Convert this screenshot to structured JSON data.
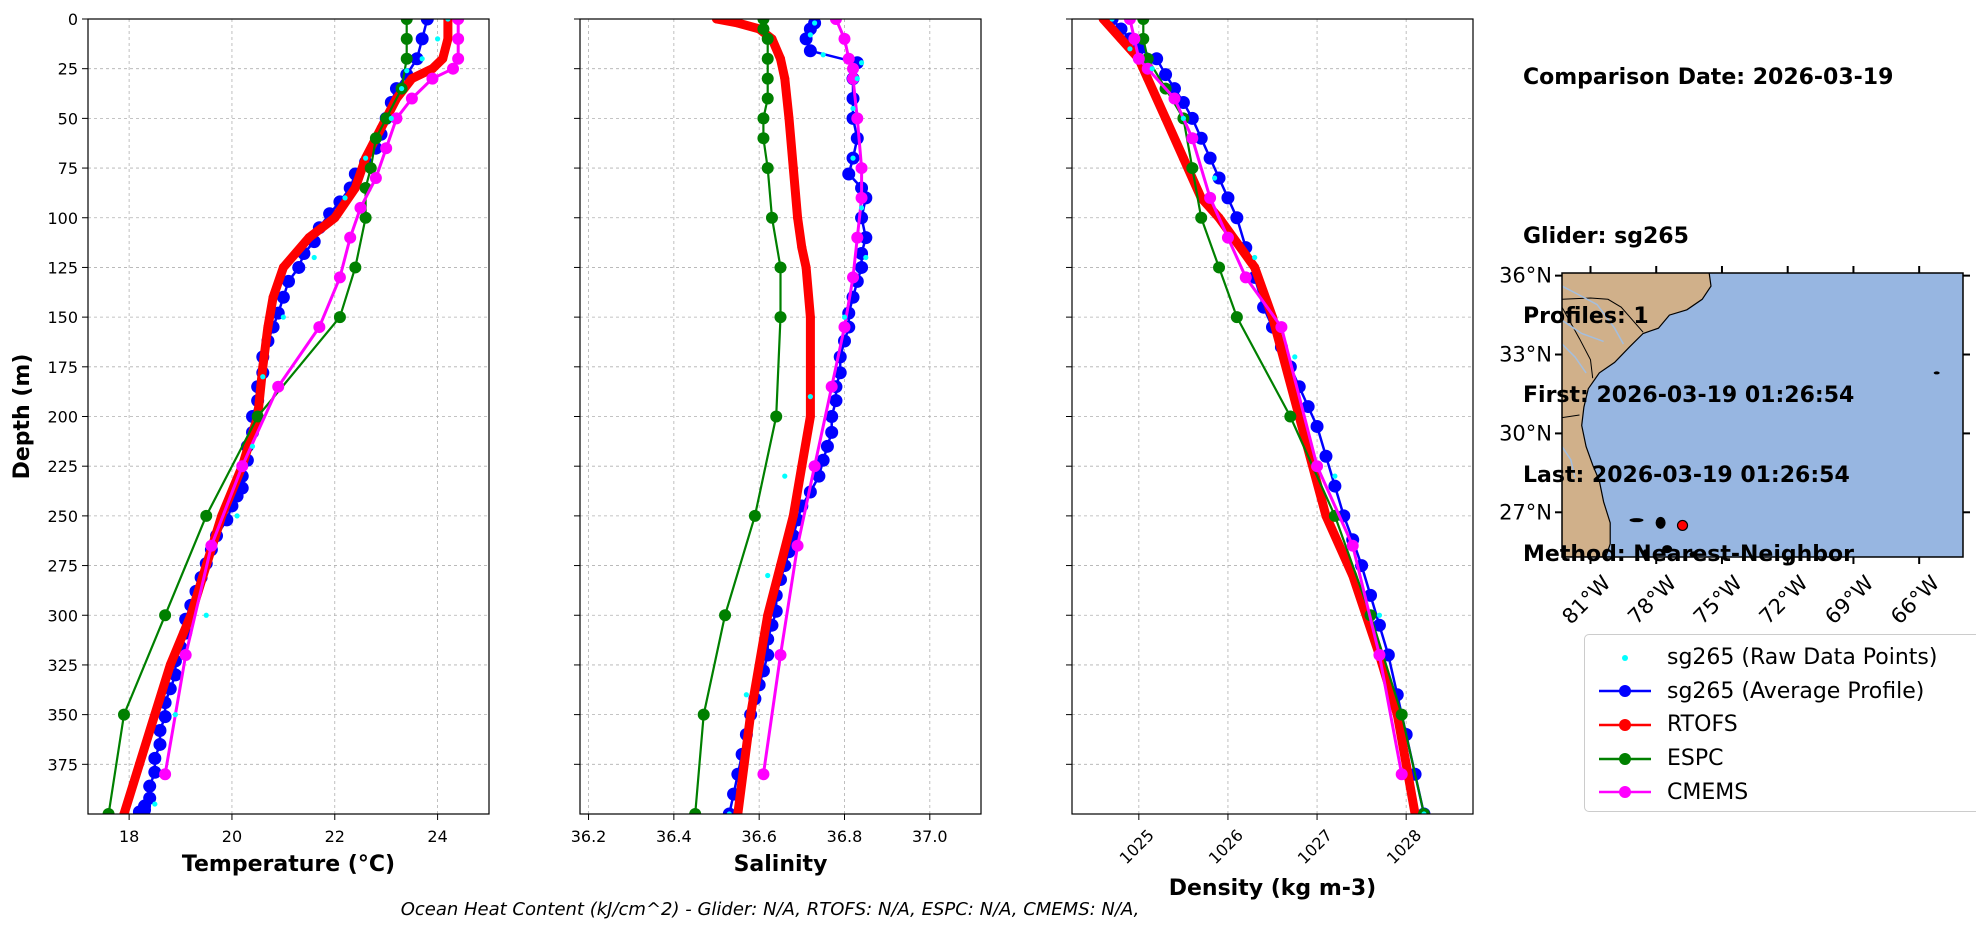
{
  "info": {
    "comparison_date": "Comparison Date: 2026-03-19",
    "glider": "Glider: sg265",
    "profiles": "Profiles: 1",
    "first": "First: 2026-03-19 01:26:54",
    "last": "Last: 2026-03-19 01:26:54",
    "method": "Method: Nearest-Neighbor"
  },
  "footer": "Ocean Heat Content (kJ/cm^2) - Glider: N/A,  RTOFS: N/A,  ESPC: N/A,  CMEMS: N/A,",
  "colors": {
    "raw": "#00ffff",
    "glider": "#0000ff",
    "rtofs": "#ff0000",
    "espc": "#008000",
    "cmems": "#ff00ff",
    "ocean": "#97b6e1",
    "land": "#d0b08a",
    "marker": "#ff0000"
  },
  "legend": [
    {
      "key": "raw",
      "label": "sg265 (Raw Data Points)"
    },
    {
      "key": "glider",
      "label": "sg265 (Average Profile)"
    },
    {
      "key": "rtofs",
      "label": "RTOFS"
    },
    {
      "key": "espc",
      "label": "ESPC"
    },
    {
      "key": "cmems",
      "label": "CMEMS"
    }
  ],
  "chart_data": [
    {
      "type": "line",
      "ylabel": "Depth (m)",
      "xlabel": "Temperature (°C)",
      "xlim": [
        17.2,
        25.0
      ],
      "ylim": [
        400,
        0
      ],
      "xticks": [
        18,
        20,
        22,
        24
      ],
      "xtick_labels": [
        "18",
        "20",
        "22",
        "24"
      ],
      "yticks": [
        0,
        25,
        50,
        75,
        100,
        125,
        150,
        175,
        200,
        225,
        250,
        275,
        300,
        325,
        350,
        375
      ],
      "grid": true,
      "series": [
        {
          "name": "sg265 (Raw Data Points)",
          "key": "raw",
          "x": [
            24.2,
            24.0,
            23.7,
            23.4,
            23.3,
            23.1,
            22.6,
            22.2,
            21.6,
            21.0,
            20.6,
            20.4,
            20.1,
            19.5,
            18.9,
            18.5
          ],
          "y": [
            0,
            10,
            20,
            26,
            35,
            50,
            70,
            90,
            120,
            150,
            180,
            215,
            250,
            300,
            350,
            395
          ]
        },
        {
          "name": "sg265 (Average Profile)",
          "key": "glider",
          "x": [
            23.8,
            23.7,
            23.6,
            23.4,
            23.2,
            23.1,
            23.0,
            22.9,
            22.8,
            22.6,
            22.4,
            22.3,
            22.1,
            21.9,
            21.7,
            21.6,
            21.4,
            21.3,
            21.1,
            21.0,
            20.9,
            20.8,
            20.7,
            20.6,
            20.6,
            20.5,
            20.5,
            20.4,
            20.4,
            20.3,
            20.3,
            20.2,
            20.2,
            20.1,
            20.0,
            19.9,
            19.7,
            19.6,
            19.5,
            19.4,
            19.3,
            19.2,
            19.1,
            19.1,
            19.0,
            18.9,
            18.9,
            18.8,
            18.7,
            18.7,
            18.6,
            18.6,
            18.5,
            18.5,
            18.4,
            18.4,
            18.3,
            18.3,
            18.2,
            18.2
          ],
          "y": [
            0,
            10,
            20,
            28,
            35,
            42,
            50,
            58,
            65,
            72,
            78,
            85,
            92,
            98,
            105,
            112,
            118,
            125,
            132,
            140,
            148,
            155,
            162,
            170,
            178,
            185,
            192,
            200,
            208,
            215,
            222,
            230,
            236,
            240,
            245,
            252,
            260,
            267,
            274,
            281,
            288,
            295,
            302,
            309,
            316,
            323,
            330,
            337,
            344,
            351,
            358,
            365,
            372,
            379,
            386,
            392,
            396,
            398,
            399,
            400
          ]
        },
        {
          "name": "RTOFS",
          "key": "rtofs",
          "x": [
            24.2,
            24.2,
            24.1,
            23.9,
            23.5,
            23.2,
            22.9,
            22.6,
            22.4,
            22.0,
            21.5,
            21.0,
            20.8,
            20.7,
            20.6,
            20.5,
            20.2,
            19.8,
            19.5,
            19.2,
            18.8,
            18.5,
            18.2,
            17.9
          ],
          "y": [
            0,
            10,
            20,
            25,
            30,
            40,
            55,
            70,
            85,
            100,
            110,
            125,
            140,
            155,
            175,
            200,
            225,
            250,
            275,
            300,
            325,
            350,
            375,
            400
          ]
        },
        {
          "name": "ESPC",
          "key": "espc",
          "x": [
            23.4,
            23.4,
            23.4,
            23.3,
            23.0,
            22.8,
            22.7,
            22.6,
            22.6,
            22.4,
            22.1,
            20.5,
            19.5,
            18.7,
            17.9,
            17.6
          ],
          "y": [
            0,
            10,
            20,
            35,
            50,
            60,
            75,
            85,
            100,
            125,
            150,
            200,
            250,
            300,
            350,
            400
          ]
        },
        {
          "name": "CMEMS",
          "key": "cmems",
          "x": [
            24.4,
            24.4,
            24.4,
            24.3,
            23.9,
            23.5,
            23.2,
            23.0,
            22.8,
            22.5,
            22.3,
            22.1,
            21.7,
            20.9,
            20.2,
            19.6,
            19.1,
            18.7
          ],
          "y": [
            0,
            10,
            20,
            25,
            30,
            40,
            50,
            65,
            80,
            95,
            110,
            130,
            155,
            185,
            225,
            265,
            320,
            380
          ]
        }
      ]
    },
    {
      "type": "line",
      "xlabel": "Salinity",
      "xlim": [
        36.18,
        37.12
      ],
      "ylim": [
        400,
        0
      ],
      "xticks": [
        36.2,
        36.4,
        36.6,
        36.8,
        37.0
      ],
      "xtick_labels": [
        "36.2",
        "36.4",
        "36.6",
        "36.8",
        "37.0"
      ],
      "yticks": [
        0,
        25,
        50,
        75,
        100,
        125,
        150,
        175,
        200,
        225,
        250,
        275,
        300,
        325,
        350,
        375
      ],
      "grid": true,
      "series": [
        {
          "name": "sg265 (Raw Data Points)",
          "key": "raw",
          "x": [
            36.73,
            36.72,
            36.75,
            36.84,
            36.83,
            36.82,
            36.82,
            36.84,
            36.85,
            36.8,
            36.72,
            36.66,
            36.62,
            36.57,
            36.53
          ],
          "y": [
            2,
            8,
            18,
            22,
            30,
            45,
            70,
            95,
            120,
            150,
            190,
            230,
            280,
            340,
            400
          ]
        },
        {
          "name": "sg265 (Average Profile)",
          "key": "glider",
          "x": [
            36.73,
            36.72,
            36.71,
            36.72,
            36.83,
            36.82,
            36.82,
            36.82,
            36.83,
            36.82,
            36.81,
            36.84,
            36.85,
            36.84,
            36.85,
            36.84,
            36.84,
            36.83,
            36.82,
            36.81,
            36.81,
            36.8,
            36.79,
            36.79,
            36.78,
            36.78,
            36.77,
            36.77,
            36.76,
            36.75,
            36.74,
            36.72,
            36.7,
            36.69,
            36.68,
            36.67,
            36.66,
            36.65,
            36.64,
            36.64,
            36.63,
            36.62,
            36.62,
            36.61,
            36.6,
            36.59,
            36.58,
            36.57,
            36.56,
            36.55,
            36.54,
            36.53
          ],
          "y": [
            2,
            5,
            10,
            16,
            22,
            30,
            40,
            50,
            60,
            70,
            78,
            85,
            90,
            100,
            110,
            118,
            125,
            132,
            140,
            148,
            155,
            162,
            170,
            178,
            185,
            192,
            200,
            208,
            215,
            222,
            230,
            238,
            245,
            252,
            260,
            268,
            275,
            282,
            290,
            298,
            305,
            312,
            320,
            328,
            335,
            342,
            350,
            360,
            370,
            380,
            390,
            400
          ]
        },
        {
          "name": "RTOFS",
          "key": "rtofs",
          "x": [
            36.5,
            36.55,
            36.6,
            36.63,
            36.65,
            36.66,
            36.67,
            36.68,
            36.69,
            36.7,
            36.71,
            36.72,
            36.72,
            36.72,
            36.7,
            36.68,
            36.65,
            36.62,
            36.58,
            36.55
          ],
          "y": [
            0,
            2,
            5,
            10,
            20,
            30,
            50,
            75,
            100,
            115,
            125,
            150,
            175,
            200,
            225,
            250,
            275,
            300,
            350,
            400
          ]
        },
        {
          "name": "ESPC",
          "key": "espc",
          "x": [
            36.61,
            36.61,
            36.62,
            36.62,
            36.62,
            36.62,
            36.61,
            36.61,
            36.62,
            36.63,
            36.65,
            36.65,
            36.64,
            36.59,
            36.52,
            36.47,
            36.45
          ],
          "y": [
            0,
            5,
            10,
            20,
            30,
            40,
            50,
            60,
            75,
            100,
            125,
            150,
            200,
            250,
            300,
            350,
            400
          ]
        },
        {
          "name": "CMEMS",
          "key": "cmems",
          "x": [
            36.78,
            36.8,
            36.81,
            36.82,
            36.82,
            36.83,
            36.84,
            36.84,
            36.83,
            36.82,
            36.8,
            36.77,
            36.73,
            36.69,
            36.65,
            36.61
          ],
          "y": [
            0,
            10,
            20,
            25,
            30,
            50,
            75,
            90,
            110,
            130,
            155,
            185,
            225,
            265,
            320,
            380
          ]
        }
      ]
    },
    {
      "type": "line",
      "xlabel": "Density (kg m-3)",
      "xlim": [
        1024.25,
        1028.75
      ],
      "ylim": [
        400,
        0
      ],
      "xticks": [
        1025,
        1026,
        1027,
        1028
      ],
      "xtick_labels": [
        "1025",
        "1026",
        "1027",
        "1028"
      ],
      "yticks": [
        0,
        25,
        50,
        75,
        100,
        125,
        150,
        175,
        200,
        225,
        250,
        275,
        300,
        325,
        350,
        375
      ],
      "grid": true,
      "series": [
        {
          "name": "sg265 (Raw Data Points)",
          "key": "raw",
          "x": [
            1024.7,
            1024.9,
            1025.15,
            1025.5,
            1025.85,
            1026.3,
            1026.75,
            1027.2,
            1027.7,
            1028.2
          ],
          "y": [
            0,
            15,
            25,
            50,
            80,
            120,
            170,
            230,
            300,
            400
          ]
        },
        {
          "name": "sg265 (Average Profile)",
          "key": "glider",
          "x": [
            1024.7,
            1024.8,
            1024.9,
            1025.0,
            1025.2,
            1025.3,
            1025.4,
            1025.5,
            1025.6,
            1025.7,
            1025.8,
            1025.9,
            1026.0,
            1026.1,
            1026.2,
            1026.3,
            1026.4,
            1026.5,
            1026.6,
            1026.7,
            1026.8,
            1026.9,
            1027.0,
            1027.1,
            1027.2,
            1027.3,
            1027.4,
            1027.5,
            1027.6,
            1027.7,
            1027.8,
            1027.9,
            1028.0,
            1028.1,
            1028.2
          ],
          "y": [
            0,
            5,
            10,
            15,
            20,
            28,
            35,
            42,
            50,
            60,
            70,
            80,
            90,
            100,
            115,
            130,
            145,
            155,
            165,
            175,
            185,
            195,
            205,
            220,
            235,
            250,
            262,
            275,
            290,
            305,
            320,
            340,
            360,
            380,
            400
          ]
        },
        {
          "name": "RTOFS",
          "key": "rtofs",
          "x": [
            1024.6,
            1024.8,
            1025.0,
            1025.1,
            1025.3,
            1025.5,
            1025.7,
            1025.9,
            1026.3,
            1026.5,
            1026.8,
            1027.1,
            1027.4,
            1027.7,
            1027.9,
            1028.1
          ],
          "y": [
            0,
            10,
            20,
            30,
            50,
            70,
            90,
            100,
            125,
            150,
            200,
            250,
            280,
            320,
            350,
            400
          ]
        },
        {
          "name": "ESPC",
          "key": "espc",
          "x": [
            1025.05,
            1025.05,
            1025.1,
            1025.3,
            1025.5,
            1025.6,
            1025.7,
            1025.9,
            1026.1,
            1026.7,
            1027.2,
            1027.6,
            1027.95,
            1028.2
          ],
          "y": [
            0,
            10,
            20,
            35,
            50,
            75,
            100,
            125,
            150,
            200,
            250,
            300,
            350,
            400
          ]
        },
        {
          "name": "CMEMS",
          "key": "cmems",
          "x": [
            1024.9,
            1024.95,
            1025.0,
            1025.1,
            1025.4,
            1025.6,
            1025.8,
            1026.0,
            1026.2,
            1026.6,
            1027.0,
            1027.4,
            1027.7,
            1027.95
          ],
          "y": [
            0,
            10,
            20,
            25,
            40,
            60,
            90,
            110,
            130,
            155,
            225,
            265,
            320,
            380
          ]
        }
      ]
    }
  ],
  "map": {
    "lat_labels": [
      "36°N",
      "33°N",
      "30°N",
      "27°N"
    ],
    "lon_labels": [
      "81°W",
      "78°W",
      "75°W",
      "72°W",
      "69°W",
      "66°W"
    ],
    "lat_values": [
      36,
      33,
      30,
      27
    ],
    "lon_values": [
      -81,
      -78,
      -75,
      -72,
      -69,
      -66
    ],
    "lat_range": [
      25.3,
      36.1
    ],
    "lon_range": [
      -82.3,
      -64.0
    ],
    "glider_position": {
      "lat": 26.5,
      "lon": -76.8
    }
  }
}
